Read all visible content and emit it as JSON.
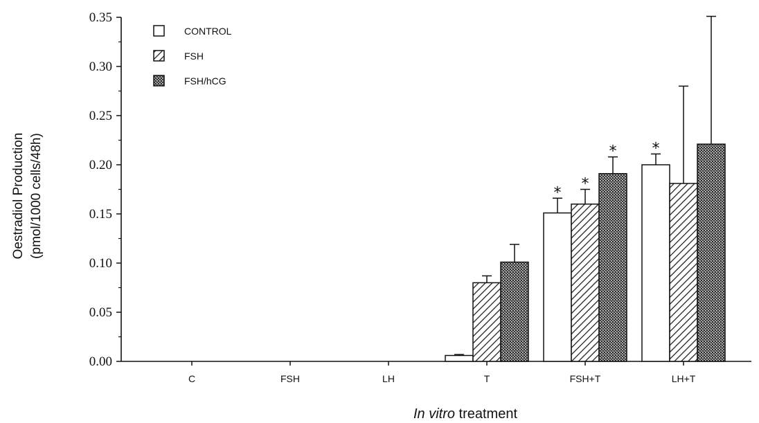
{
  "chart_data": {
    "type": "bar",
    "xlabel_italic": "In vitro",
    "xlabel_rest": " treatment",
    "ylabel_line1": "Oestradiol Production",
    "ylabel_line2": "(pmol/1000 cells/48h)",
    "ylim": [
      0,
      0.35
    ],
    "yticks": [
      "0.00",
      "0.05",
      "0.10",
      "0.15",
      "0.20",
      "0.25",
      "0.30",
      "0.35"
    ],
    "categories": [
      "C",
      "FSH",
      "LH",
      "T",
      "FSH+T",
      "LH+T"
    ],
    "legend_position": "top-left",
    "significance_marker": "*",
    "series": [
      {
        "name": "CONTROL",
        "pattern": "open",
        "values": [
          0,
          0,
          0,
          0.006,
          0.151,
          0.2
        ],
        "errors": [
          0,
          0,
          0,
          0.001,
          0.015,
          0.011
        ],
        "significant": [
          false,
          false,
          false,
          false,
          true,
          true
        ]
      },
      {
        "name": "FSH",
        "pattern": "hatched",
        "values": [
          0,
          0,
          0,
          0.08,
          0.16,
          0.181
        ],
        "errors": [
          0,
          0,
          0,
          0.007,
          0.015,
          0.099
        ],
        "significant": [
          false,
          false,
          false,
          false,
          true,
          false
        ]
      },
      {
        "name": "FSH/hCG",
        "pattern": "crosshatched",
        "values": [
          0,
          0,
          0,
          0.101,
          0.191,
          0.221
        ],
        "errors": [
          0,
          0,
          0,
          0.018,
          0.017,
          0.13
        ],
        "significant": [
          false,
          false,
          false,
          false,
          true,
          false
        ]
      }
    ]
  }
}
